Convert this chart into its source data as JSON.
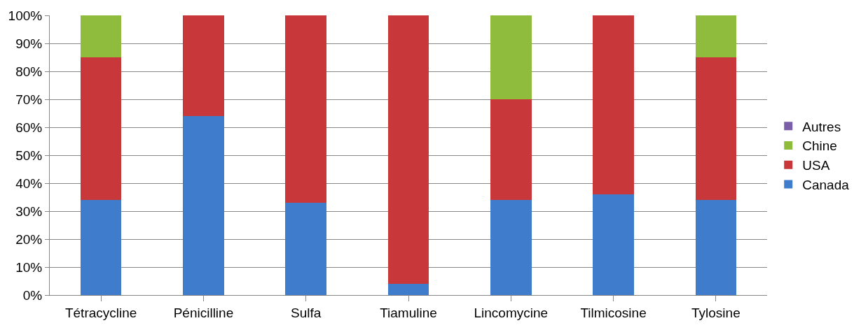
{
  "chart_data": {
    "type": "bar",
    "stacked": true,
    "categories": [
      "Tétracycline",
      "Pénicilline",
      "Sulfa",
      "Tiamuline",
      "Lincomycine",
      "Tilmicosine",
      "Tylosine"
    ],
    "series": [
      {
        "name": "Canada",
        "color": "#3f7dcc",
        "values": [
          34,
          64,
          33,
          4,
          34,
          36,
          34
        ]
      },
      {
        "name": "USA",
        "color": "#c8383a",
        "values": [
          51,
          36,
          67,
          96,
          36,
          64,
          51
        ]
      },
      {
        "name": "Chine",
        "color": "#8fbc3c",
        "values": [
          15,
          0,
          0,
          0,
          30,
          0,
          15
        ]
      },
      {
        "name": "Autres",
        "color": "#7b5ea8",
        "values": [
          0,
          0,
          0,
          0,
          0,
          0,
          0
        ]
      }
    ],
    "ylim": [
      0,
      100
    ],
    "yticks": [
      {
        "value": 0,
        "label": "0%"
      },
      {
        "value": 10,
        "label": "10%"
      },
      {
        "value": 20,
        "label": "20%"
      },
      {
        "value": 30,
        "label": "30%"
      },
      {
        "value": 40,
        "label": "40%"
      },
      {
        "value": 50,
        "label": "50%"
      },
      {
        "value": 60,
        "label": "60%"
      },
      {
        "value": 70,
        "label": "70%"
      },
      {
        "value": 80,
        "label": "80%"
      },
      {
        "value": 90,
        "label": "90%"
      },
      {
        "value": 100,
        "label": "100%"
      }
    ],
    "grid": "y",
    "legend": "right"
  }
}
